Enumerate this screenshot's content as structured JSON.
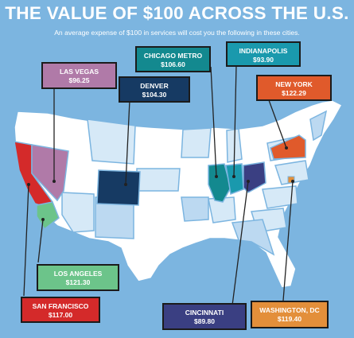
{
  "header": {
    "title": "THE VALUE OF $100 ACROSS THE U.S.",
    "subtitle": "An average expense of $100 in services will cost you the following in these cities."
  },
  "colors": {
    "background": "#7cb5e0",
    "land_white": "#ffffff",
    "land_light": "#d6e9f7",
    "land_mid": "#bcd9f1",
    "state_border": "#7cb5e0"
  },
  "cities": [
    {
      "id": "las-vegas",
      "city": "LAS VEGAS",
      "price": "$96.25",
      "color": "#b07aa8"
    },
    {
      "id": "chicago",
      "city": "CHICAGO METRO",
      "price": "$106.60",
      "color": "#13898f"
    },
    {
      "id": "indianapolis",
      "city": "INDIANAPOLIS",
      "price": "$93.90",
      "color": "#1a99ad"
    },
    {
      "id": "denver",
      "city": "DENVER",
      "price": "$104.30",
      "color": "#163a63"
    },
    {
      "id": "new-york",
      "city": "NEW YORK",
      "price": "$122.29",
      "color": "#e05a2b"
    },
    {
      "id": "los-angeles",
      "city": "LOS ANGELES",
      "price": "$121.30",
      "color": "#6cc48a"
    },
    {
      "id": "san-francisco",
      "city": "SAN FRANCISCO",
      "price": "$117.00",
      "color": "#d42a2a"
    },
    {
      "id": "cincinnati",
      "city": "CINCINNATI",
      "price": "$89.80",
      "color": "#3a3f82"
    },
    {
      "id": "washington",
      "city": "WASHINGTON, DC",
      "price": "$119.40",
      "color": "#e38f3a"
    }
  ]
}
